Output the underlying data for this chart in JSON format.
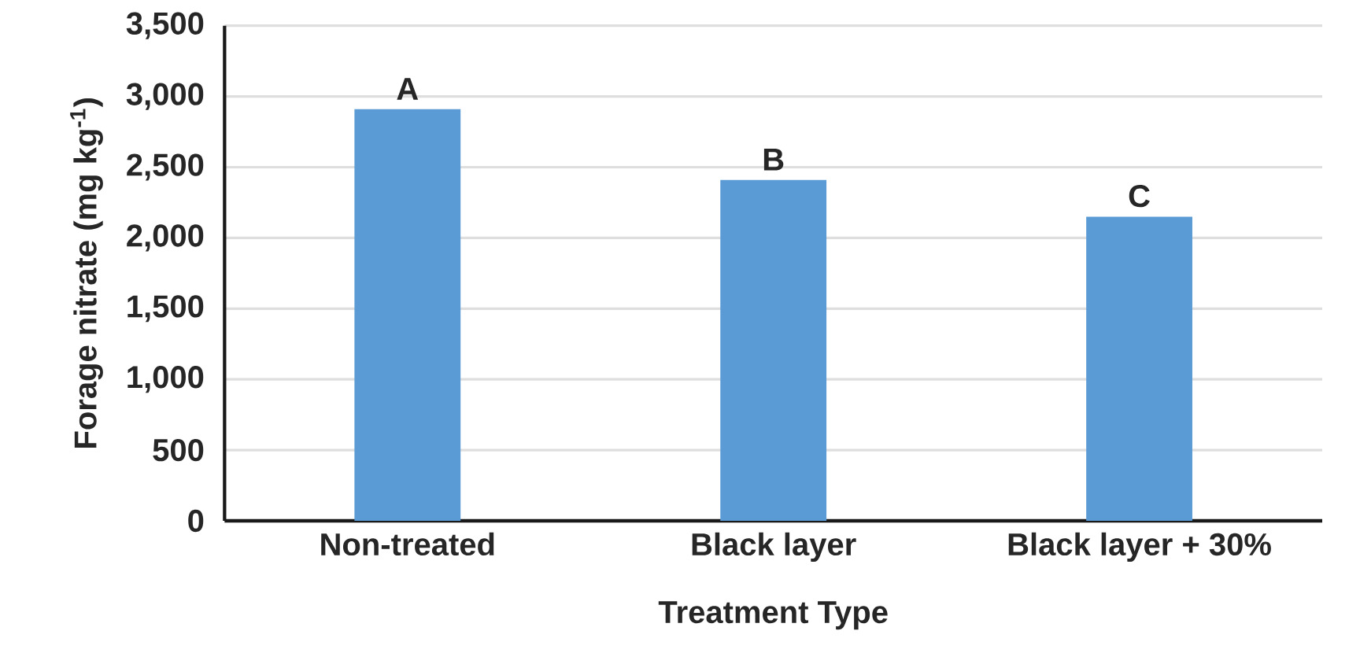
{
  "chart_data": {
    "type": "bar",
    "xlabel": "Treatment Type",
    "ylabel": "Forage nitrate (mg kg$^{-1}$)",
    "categories": [
      "Non-treated",
      "Black layer",
      "Black layer + 30%"
    ],
    "values": [
      2910,
      2410,
      2150
    ],
    "color": "#5b9bd5",
    "ylim": [
      0,
      3500
    ],
    "yticks": [
      0,
      500,
      {
        "value": 1000,
        "label": "1,000"
      },
      {
        "value": 1500,
        "label": "1,500"
      },
      {
        "value": 2000,
        "label": "2,000"
      },
      {
        "value": 2500,
        "label": "2,500"
      },
      {
        "value": 3000,
        "label": "3,000"
      },
      {
        "value": 3500,
        "label": "3,500"
      }
    ],
    "grid": "y",
    "annotations": [
      {
        "text": "A",
        "x": "Non-treated",
        "y": 2910
      },
      {
        "text": "B",
        "x": "Black layer",
        "y": 2410
      },
      {
        "text": "C",
        "x": "Black layer + 30%",
        "y": 2150
      }
    ]
  }
}
